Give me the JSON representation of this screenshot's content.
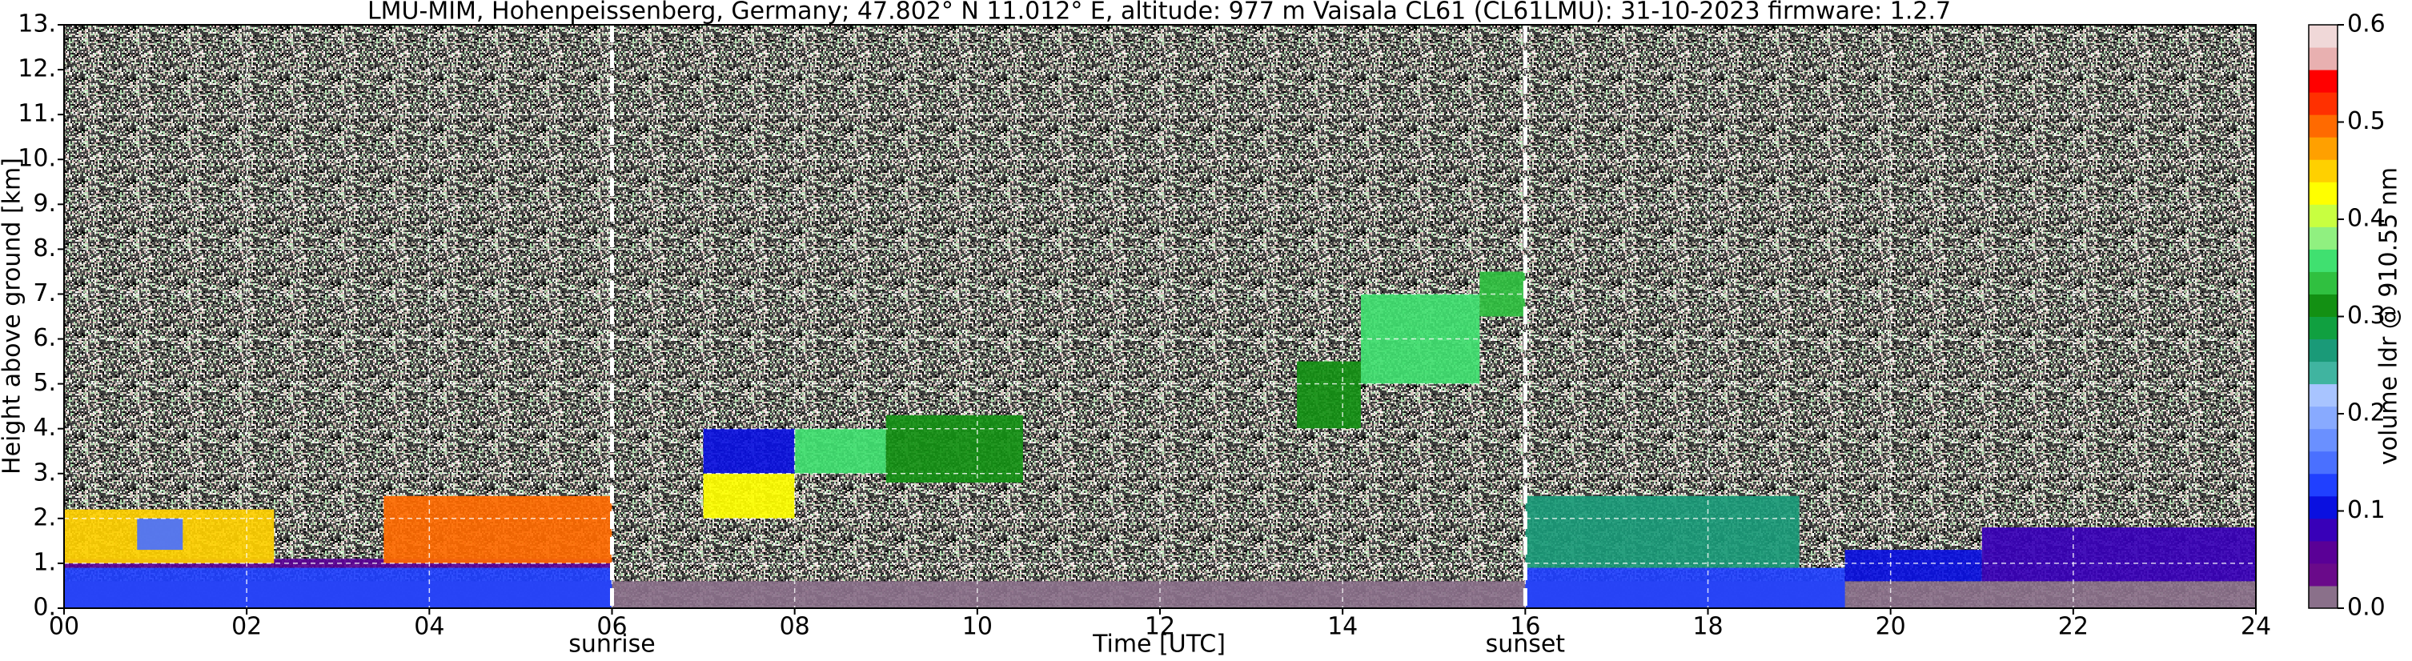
{
  "chart_data": {
    "type": "heatmap",
    "title": "LMU-MIM, Hohenpeissenberg, Germany; 47.802° N 11.012° E, altitude: 977 m    Vaisala CL61 (CL61LMU): 31-10-2023    firmware: 1.2.7",
    "xlabel": "Time [UTC]",
    "ylabel": "Height above ground [km]",
    "colorbar_label": "volume ldr @ 910.55 nm",
    "xlim": [
      0,
      24
    ],
    "ylim": [
      0,
      13
    ],
    "clim": [
      0,
      0.6
    ],
    "grid": true,
    "xticks": [
      {
        "value": 0,
        "label": "00"
      },
      {
        "value": 2,
        "label": "02"
      },
      {
        "value": 4,
        "label": "04"
      },
      {
        "value": 6,
        "label": "06"
      },
      {
        "value": 8,
        "label": "08"
      },
      {
        "value": 10,
        "label": "10"
      },
      {
        "value": 12,
        "label": "12"
      },
      {
        "value": 14,
        "label": "14"
      },
      {
        "value": 16,
        "label": "16"
      },
      {
        "value": 18,
        "label": "18"
      },
      {
        "value": 20,
        "label": "20"
      },
      {
        "value": 22,
        "label": "22"
      },
      {
        "value": 24,
        "label": "24"
      }
    ],
    "yticks": [
      {
        "value": 0,
        "label": "0."
      },
      {
        "value": 1,
        "label": "1."
      },
      {
        "value": 2,
        "label": "2."
      },
      {
        "value": 3,
        "label": "3."
      },
      {
        "value": 4,
        "label": "4."
      },
      {
        "value": 5,
        "label": "5."
      },
      {
        "value": 6,
        "label": "6."
      },
      {
        "value": 7,
        "label": "7."
      },
      {
        "value": 8,
        "label": "8."
      },
      {
        "value": 9,
        "label": "9."
      },
      {
        "value": 10,
        "label": "10."
      },
      {
        "value": 11,
        "label": "11."
      },
      {
        "value": 12,
        "label": "12."
      },
      {
        "value": 13,
        "label": "13."
      }
    ],
    "cticks": [
      {
        "value": 0,
        "label": "0.0"
      },
      {
        "value": 0.1,
        "label": "0.1"
      },
      {
        "value": 0.2,
        "label": "0.2"
      },
      {
        "value": 0.3,
        "label": "0.3"
      },
      {
        "value": 0.4,
        "label": "0.4"
      },
      {
        "value": 0.5,
        "label": "0.5"
      },
      {
        "value": 0.6,
        "label": "0.6"
      }
    ],
    "colorscale": [
      "#8a708a",
      "#6a0a8a",
      "#5a0096",
      "#3800b8",
      "#0a10e0",
      "#2040ff",
      "#4a70ff",
      "#6a90ff",
      "#88aaff",
      "#a8c4ff",
      "#40b4a0",
      "#1a9a78",
      "#10a040",
      "#139013",
      "#30c040",
      "#40e070",
      "#90f080",
      "#c8ff40",
      "#ffff00",
      "#ffd000",
      "#ffa000",
      "#ff6a00",
      "#ff3000",
      "#ff0000",
      "#e8b0b0",
      "#f0d8d8"
    ],
    "annotations": [
      {
        "text": "sunrise",
        "x": 6
      },
      {
        "text": "sunset",
        "x": 16
      }
    ],
    "regions": [
      {
        "t": [
          0,
          24
        ],
        "h": [
          0,
          0.6
        ],
        "value": 0.02
      },
      {
        "t": [
          0,
          6
        ],
        "h": [
          0,
          0.9
        ],
        "value": 0.12
      },
      {
        "t": [
          16,
          19.5
        ],
        "h": [
          0,
          0.9
        ],
        "value": 0.12
      },
      {
        "t": [
          0,
          6
        ],
        "h": [
          0.9,
          1.1
        ],
        "value": 0.06
      },
      {
        "t": [
          0,
          2.3
        ],
        "h": [
          1,
          2.2
        ],
        "value": 0.46
      },
      {
        "t": [
          0.8,
          1.3
        ],
        "h": [
          1.3,
          2.0
        ],
        "value": 0.14
      },
      {
        "t": [
          3.5,
          6
        ],
        "h": [
          1,
          2.5
        ],
        "value": 0.5
      },
      {
        "t": [
          7,
          8
        ],
        "h": [
          2,
          3
        ],
        "value": 0.43
      },
      {
        "t": [
          7,
          8
        ],
        "h": [
          3,
          4
        ],
        "value": 0.1
      },
      {
        "t": [
          8,
          9
        ],
        "h": [
          3,
          4
        ],
        "value": 0.35
      },
      {
        "t": [
          9,
          10.5
        ],
        "h": [
          2.8,
          4.3
        ],
        "value": 0.3
      },
      {
        "t": [
          13.5,
          14.2
        ],
        "h": [
          4,
          5.5
        ],
        "value": 0.32
      },
      {
        "t": [
          14.2,
          15.5
        ],
        "h": [
          5,
          7
        ],
        "value": 0.36
      },
      {
        "t": [
          15.5,
          16
        ],
        "h": [
          6.5,
          7.5
        ],
        "value": 0.33
      },
      {
        "t": [
          16,
          19
        ],
        "h": [
          0.9,
          2.5
        ],
        "value": 0.26
      },
      {
        "t": [
          19.5,
          21
        ],
        "h": [
          0.6,
          1.3
        ],
        "value": 0.1
      },
      {
        "t": [
          21,
          24
        ],
        "h": [
          0.6,
          1.8
        ],
        "value": 0.08
      }
    ]
  }
}
